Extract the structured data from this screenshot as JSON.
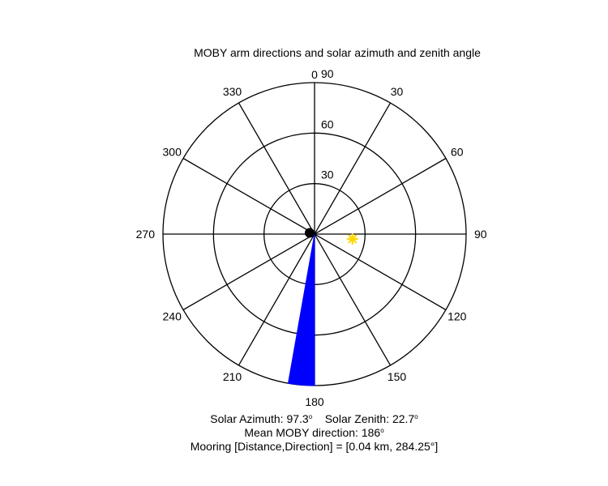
{
  "chart_data": {
    "type": "polar",
    "title": "MOBY arm directions and solar azimuth and zenith angle",
    "angle_ticks": [
      "0",
      "30",
      "60",
      "90",
      "120",
      "150",
      "180",
      "210",
      "240",
      "270",
      "300",
      "330"
    ],
    "radial_ticks": [
      "30",
      "60",
      "90"
    ],
    "rlim": [
      0,
      90
    ],
    "grid": true,
    "colors": {
      "wedge": "#0000ff",
      "sun": "#ffd700",
      "mooring": "#000000"
    },
    "arm_wedge": {
      "name": "MOBY arm",
      "theta_start": 180,
      "theta_end": 190,
      "r": 90
    },
    "sun_marker": {
      "name": "Sun",
      "azimuth": 97.3,
      "zenith": 22.7
    },
    "mooring_marker": {
      "name": "Mooring",
      "direction": 284.25,
      "r": 3
    }
  },
  "annotations": {
    "solar_azimuth_label": "Solar Azimuth:",
    "solar_azimuth_value": "97.3",
    "solar_zenith_label": "Solar Zenith:",
    "solar_zenith_value": "22.7",
    "mean_direction_label": "Mean MOBY direction:",
    "mean_direction_value": "186",
    "degree_symbol": "o",
    "mooring_text": "Mooring [Distance,Direction] = [0.04 km, 284.25°]"
  }
}
